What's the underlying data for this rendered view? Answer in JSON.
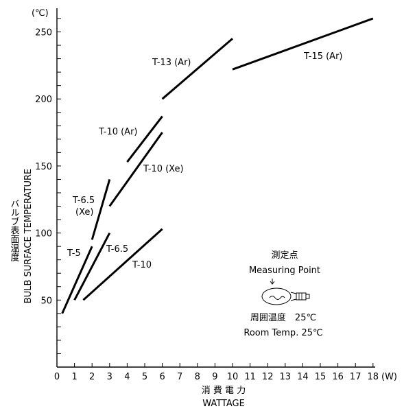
{
  "chart_data": {
    "type": "line",
    "title": "",
    "xlabel_jp": "消 費 電 力",
    "xlabel": "WATTAGE",
    "xunit": "(W)",
    "ylabel_jp": "バルブ表面温度",
    "ylabel": "BULB SURFACE TEMPERATURE",
    "yunit": "(℃)",
    "xlim": [
      0,
      18
    ],
    "ylim": [
      0,
      270
    ],
    "x_ticks": [
      0,
      1,
      2,
      3,
      4,
      5,
      6,
      7,
      8,
      9,
      10,
      11,
      12,
      13,
      14,
      15,
      16,
      17,
      18
    ],
    "y_labeled_ticks": [
      50,
      100,
      150,
      200,
      250
    ],
    "grid": false,
    "series": [
      {
        "name": "T-5",
        "x": [
          0.3,
          2.0
        ],
        "y": [
          40,
          90
        ]
      },
      {
        "name": "T-6.5",
        "x": [
          1.0,
          3.0
        ],
        "y": [
          50,
          100
        ]
      },
      {
        "name": "T-10",
        "x": [
          1.5,
          6.0
        ],
        "y": [
          50,
          103
        ]
      },
      {
        "name": "T-6.5 (Xe)",
        "x": [
          2.0,
          3.0
        ],
        "y": [
          95,
          140
        ]
      },
      {
        "name": "T-10 (Xe)",
        "x": [
          3.0,
          6.0
        ],
        "y": [
          120,
          175
        ]
      },
      {
        "name": "T-10 (Ar)",
        "x": [
          4.0,
          6.0
        ],
        "y": [
          153,
          187
        ]
      },
      {
        "name": "T-13 (Ar)",
        "x": [
          6.0,
          10.0
        ],
        "y": [
          200,
          245
        ]
      },
      {
        "name": "T-15 (Ar)",
        "x": [
          10.0,
          18.0
        ],
        "y": [
          222,
          260
        ]
      }
    ],
    "labels": {
      "t5": "T-5",
      "t65": "T-6.5",
      "t10": "T-10",
      "t65xe_1": "T-6.5",
      "t65xe_2": "(Xe)",
      "t10xe": "T-10 (Xe)",
      "t10ar": "T-10 (Ar)",
      "t13ar": "T-13 (Ar)",
      "t15ar": "T-15 (Ar)"
    },
    "annotation": {
      "measuring_jp": "測定点",
      "measuring_en": "Measuring Point",
      "ambient_jp": "周囲温度　25℃",
      "ambient_en": "Room Temp. 25℃"
    }
  }
}
